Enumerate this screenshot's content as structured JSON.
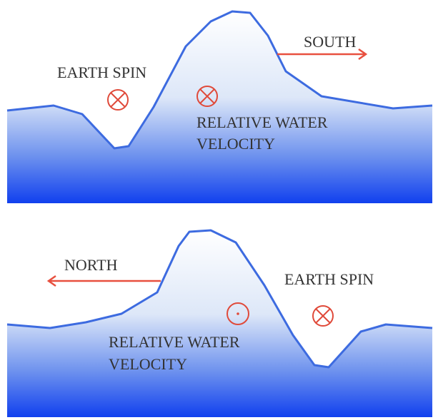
{
  "panels": [
    {
      "direction": "SOUTH",
      "spin_label": "EARTH SPIN",
      "velocity_label": [
        "RELATIVE WATER",
        "VELOCITY"
      ]
    },
    {
      "direction": "NORTH",
      "spin_label": "EARTH SPIN",
      "velocity_label": [
        "RELATIVE WATER",
        "VELOCITY"
      ]
    }
  ]
}
